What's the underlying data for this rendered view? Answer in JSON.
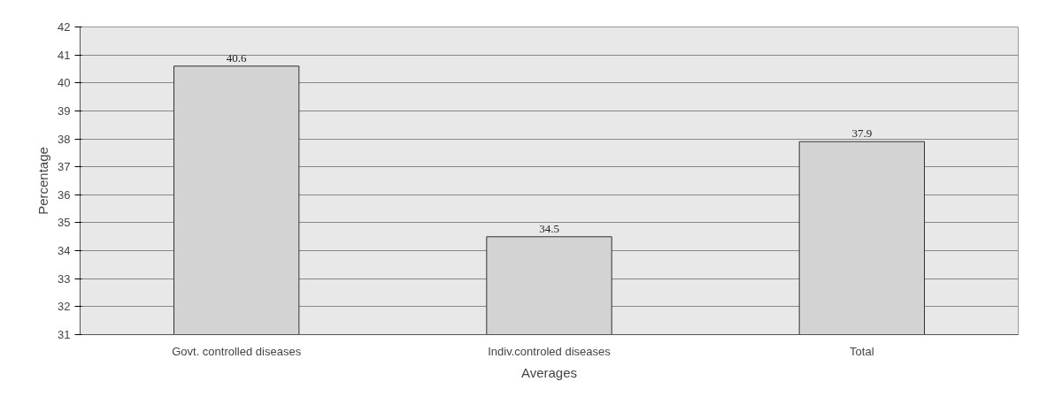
{
  "chart_data": {
    "type": "bar",
    "xlabel": "Averages",
    "ylabel": "Percentage",
    "categories": [
      "Govt. controlled diseases",
      "Indiv.controled diseases",
      "Total"
    ],
    "values": [
      40.6,
      34.5,
      37.9
    ],
    "color": "#d3d3d3",
    "ylim": [
      31,
      42
    ],
    "yticks": [
      31,
      32,
      33,
      34,
      35,
      36,
      37,
      38,
      39,
      40,
      41,
      42
    ],
    "grid": "y",
    "data_labels": true
  }
}
